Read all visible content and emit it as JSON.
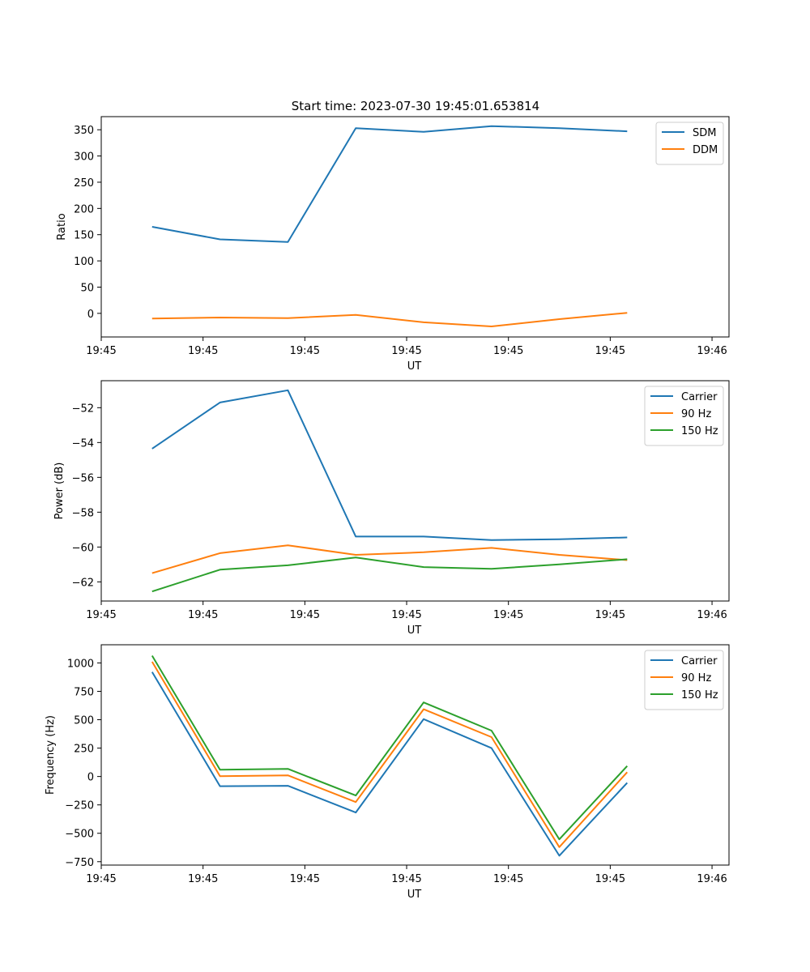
{
  "figure_title": "Start time: 2023-07-30 19:45:01.653814",
  "chart_data": [
    {
      "type": "line",
      "title": "Start time: 2023-07-30 19:45:01.653814",
      "xlabel": "UT",
      "ylabel": "Ratio",
      "xlim": [
        -0.75,
        8.5
      ],
      "ylim": [
        -45,
        375
      ],
      "x": [
        0,
        1,
        2,
        3,
        4,
        5,
        6,
        7
      ],
      "xtick_positions": [
        -0.75,
        0.75,
        2.25,
        3.75,
        5.25,
        6.75,
        8.25
      ],
      "xtick_labels": [
        "19:45",
        "19:45",
        "19:45",
        "19:45",
        "19:45",
        "19:45",
        "19:46"
      ],
      "yticks": [
        0,
        50,
        100,
        150,
        200,
        250,
        300,
        350
      ],
      "ytick_labels": [
        "0",
        "50",
        "100",
        "150",
        "200",
        "250",
        "300",
        "350"
      ],
      "legend_position": "top-right",
      "series": [
        {
          "name": "SDM",
          "color": "#1f77b4",
          "values": [
            165,
            141,
            136,
            353,
            346,
            357,
            353,
            347
          ]
        },
        {
          "name": "DDM",
          "color": "#ff7f0e",
          "values": [
            -10,
            -8,
            -9,
            -3,
            -17,
            -25,
            -11,
            1
          ]
        }
      ]
    },
    {
      "type": "line",
      "title": "",
      "xlabel": "UT",
      "ylabel": "Power (dB)",
      "xlim": [
        -0.75,
        8.5
      ],
      "ylim": [
        -63.1,
        -50.45
      ],
      "x": [
        0,
        1,
        2,
        3,
        4,
        5,
        6,
        7
      ],
      "xtick_positions": [
        -0.75,
        0.75,
        2.25,
        3.75,
        5.25,
        6.75,
        8.25
      ],
      "xtick_labels": [
        "19:45",
        "19:45",
        "19:45",
        "19:45",
        "19:45",
        "19:45",
        "19:46"
      ],
      "yticks": [
        -62,
        -60,
        -58,
        -56,
        -54,
        -52
      ],
      "ytick_labels": [
        "−62",
        "−60",
        "−58",
        "−56",
        "−54",
        "−52"
      ],
      "legend_position": "top-right",
      "series": [
        {
          "name": "Carrier",
          "color": "#1f77b4",
          "values": [
            -54.35,
            -51.7,
            -51.0,
            -59.4,
            -59.4,
            -59.6,
            -59.55,
            -59.45
          ]
        },
        {
          "name": "90 Hz",
          "color": "#ff7f0e",
          "values": [
            -61.5,
            -60.35,
            -59.9,
            -60.45,
            -60.3,
            -60.05,
            -60.45,
            -60.75
          ]
        },
        {
          "name": "150 Hz",
          "color": "#2ca02c",
          "values": [
            -62.55,
            -61.3,
            -61.05,
            -60.6,
            -61.15,
            -61.25,
            -61.0,
            -60.7
          ]
        }
      ]
    },
    {
      "type": "line",
      "title": "",
      "xlabel": "UT",
      "ylabel": "Frequency (Hz)",
      "xlim": [
        -0.75,
        8.5
      ],
      "ylim": [
        -780,
        1160
      ],
      "x": [
        0,
        1,
        2,
        3,
        4,
        5,
        6,
        7
      ],
      "xtick_positions": [
        -0.75,
        0.75,
        2.25,
        3.75,
        5.25,
        6.75,
        8.25
      ],
      "xtick_labels": [
        "19:45",
        "19:45",
        "19:45",
        "19:45",
        "19:45",
        "19:45",
        "19:46"
      ],
      "yticks": [
        -750,
        -500,
        -250,
        0,
        250,
        500,
        750,
        1000
      ],
      "ytick_labels": [
        "−750",
        "−500",
        "−250",
        "0",
        "250",
        "500",
        "750",
        "1000"
      ],
      "legend_position": "top-right",
      "series": [
        {
          "name": "Carrier",
          "color": "#1f77b4",
          "values": [
            920,
            -85,
            -82,
            -317,
            505,
            250,
            -697,
            -55
          ]
        },
        {
          "name": "90 Hz",
          "color": "#ff7f0e",
          "values": [
            1010,
            3,
            10,
            -225,
            592,
            347,
            -622,
            38
          ]
        },
        {
          "name": "150 Hz",
          "color": "#2ca02c",
          "values": [
            1064,
            60,
            67,
            -167,
            652,
            404,
            -553,
            92
          ]
        }
      ]
    }
  ]
}
